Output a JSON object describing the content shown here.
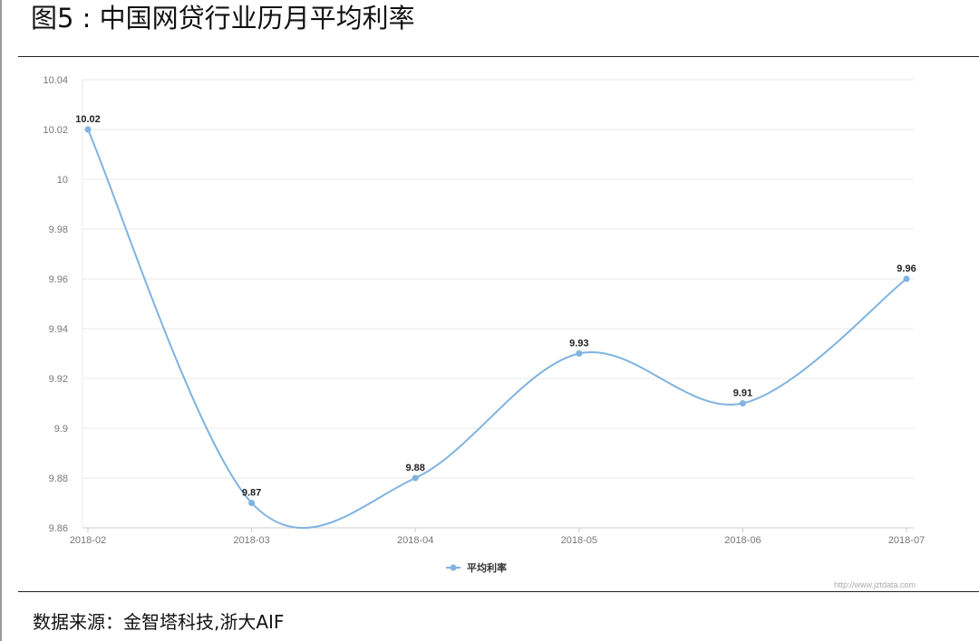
{
  "figure_title": "图5 : 中国网贷行业历月平均利率",
  "source_note": "数据来源：金智塔科技,浙大AIF",
  "watermark": "http://www.jztdata.com",
  "colors": {
    "line": "#7fb3e0",
    "grid": "#e8e8e8",
    "axis": "#cccccc",
    "tick_text": "#777777",
    "label_text": "#222222"
  },
  "chart_data": {
    "type": "line",
    "title": "",
    "xlabel": "",
    "ylabel": "",
    "categories": [
      "2018-02",
      "2018-03",
      "2018-04",
      "2018-05",
      "2018-06",
      "2018-07"
    ],
    "series": [
      {
        "name": "平均利率",
        "values": [
          10.02,
          9.87,
          9.88,
          9.93,
          9.91,
          9.96
        ]
      }
    ],
    "data_labels": [
      "10.02",
      "9.87",
      "9.88",
      "9.93",
      "9.91",
      "9.96"
    ],
    "ylim": [
      9.86,
      10.04
    ],
    "y_ticks": [
      9.86,
      9.88,
      9.9,
      9.92,
      9.94,
      9.96,
      9.98,
      10,
      10.02,
      10.04
    ],
    "y_tick_labels": [
      "9.86",
      "9.88",
      "9.9",
      "9.92",
      "9.94",
      "9.96",
      "9.98",
      "10",
      "10.02",
      "10.04"
    ],
    "grid": true,
    "smooth": true,
    "legend_position": "bottom-center"
  }
}
